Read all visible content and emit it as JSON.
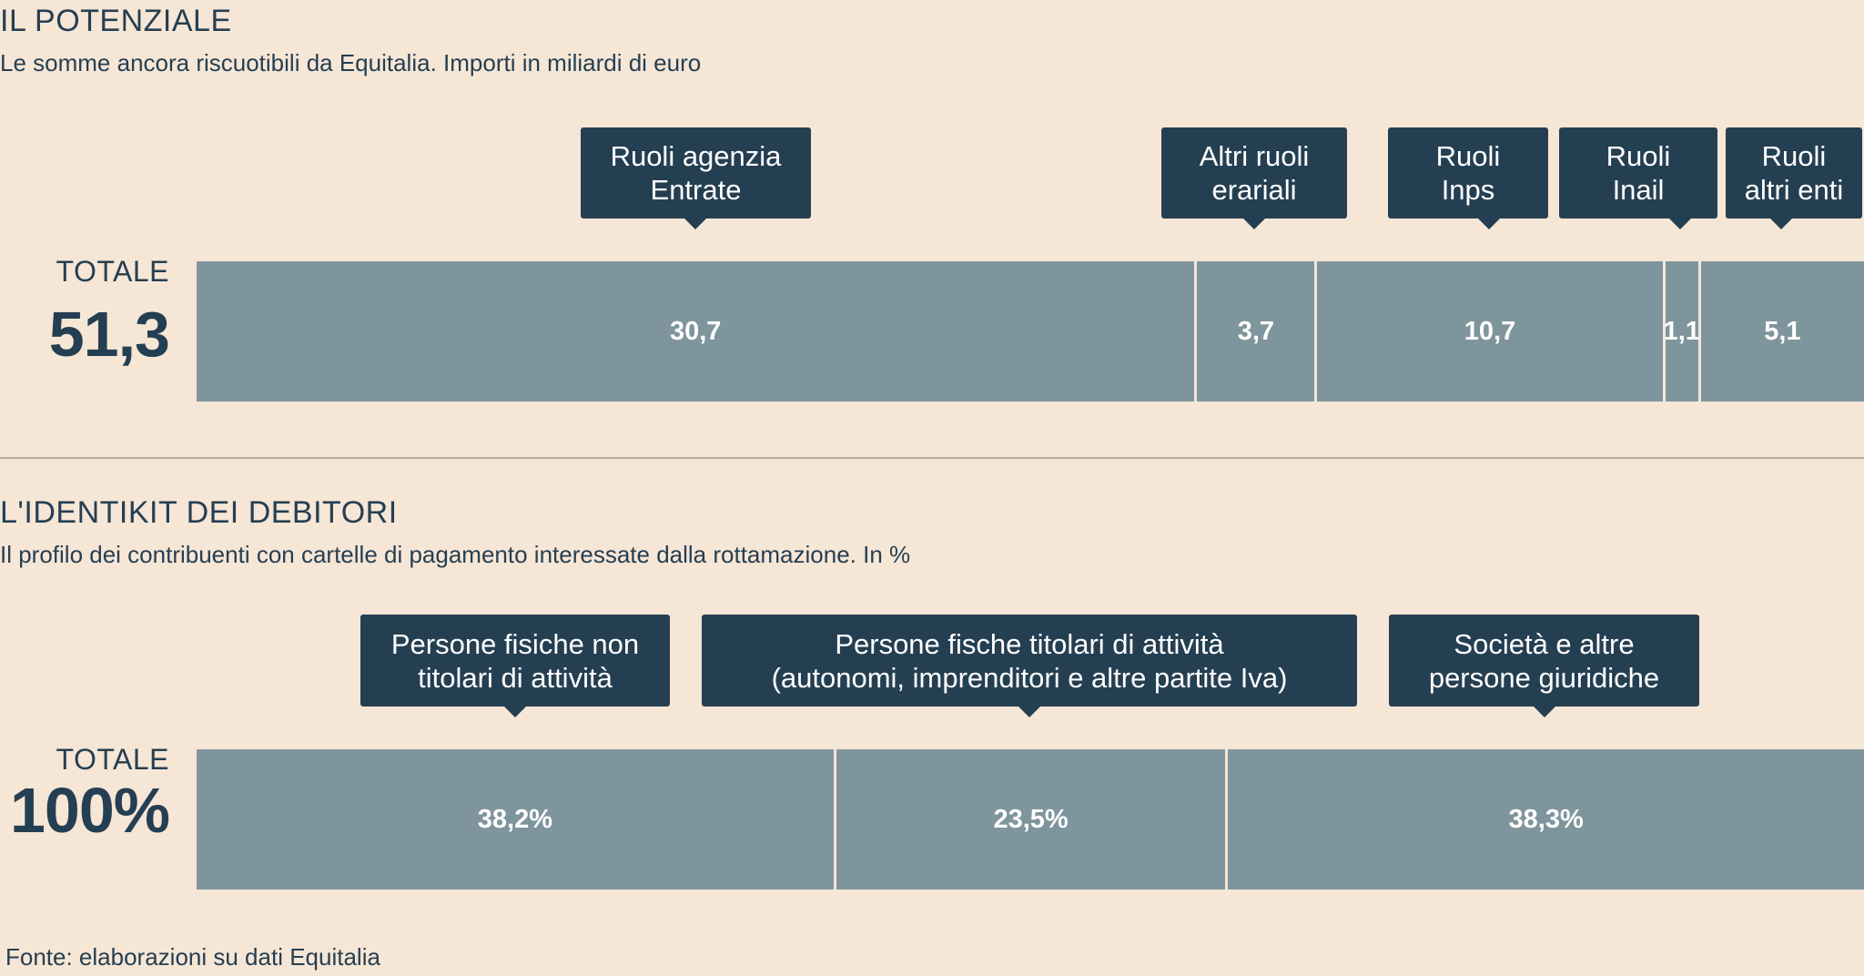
{
  "chart_data": [
    {
      "type": "bar",
      "orientation": "horizontal-stacked",
      "title": "IL POTENZIALE",
      "subtitle": "Le somme ancora riscuotibili da Equitalia. Importi in miliardi di euro",
      "total_label": "TOTALE",
      "total_value": "51,3",
      "total": 51.3,
      "categories": [
        "Ruoli agenzia Entrate",
        "Altri ruoli erariali",
        "Ruoli Inps",
        "Ruoli Inail",
        "Ruoli altri enti"
      ],
      "values": [
        30.7,
        3.7,
        10.7,
        1.1,
        5.1
      ],
      "value_labels": [
        "30,7",
        "3,7",
        "10,7",
        "1,1",
        "5,1"
      ],
      "callouts": [
        [
          "Ruoli agenzia",
          "Entrate"
        ],
        [
          "Altri ruoli",
          "erariali"
        ],
        [
          "Ruoli",
          "Inps"
        ],
        [
          "Ruoli",
          "Inail"
        ],
        [
          "Ruoli",
          "altri enti"
        ]
      ]
    },
    {
      "type": "bar",
      "orientation": "horizontal-stacked",
      "title": "L'IDENTIKIT DEI DEBITORI",
      "subtitle": "Il profilo dei contribuenti con cartelle di pagamento interessate dalla rottamazione. In %",
      "total_label": "TOTALE",
      "total_value": "100%",
      "total": 100,
      "categories": [
        "Persone fisiche non titolari di attività",
        "Persone fische titolari di attività (autonomi, imprenditori e altre partite Iva)",
        "Società e altre persone giuridiche"
      ],
      "values": [
        38.2,
        23.5,
        38.3
      ],
      "value_labels": [
        "38,2%",
        "23,5%",
        "38,3%"
      ],
      "callouts": [
        [
          "Persone fisiche non",
          "titolari di attività"
        ],
        [
          "Persone fische titolari di attività",
          "(autonomi, imprenditori e altre partite Iva)"
        ],
        [
          "Società e altre",
          "persone giuridiche"
        ]
      ]
    }
  ],
  "colors": {
    "background": "#f6e6d6",
    "bar": "#7f959d",
    "callout": "#253f52",
    "text": "#253f52"
  },
  "source": "Fonte: elaborazioni su dati Equitalia"
}
